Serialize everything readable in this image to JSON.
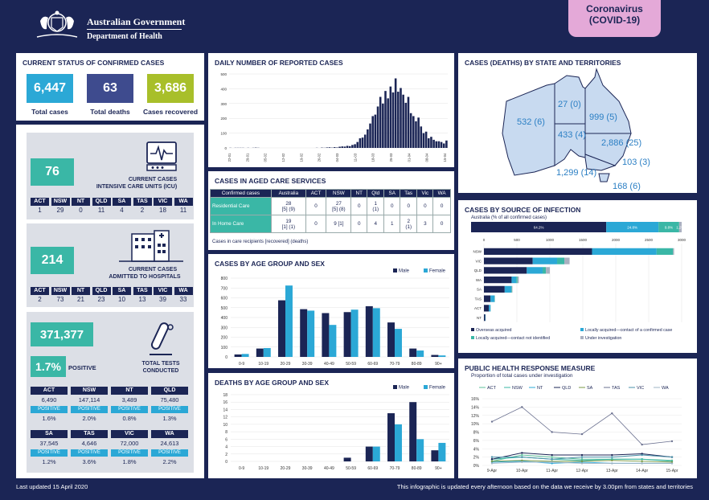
{
  "header": {
    "gov": "Australian Government",
    "dept": "Department of Health",
    "badge_line1": "Coronavirus",
    "badge_line2": "(COVID-19)"
  },
  "status": {
    "title": "CURRENT STATUS OF CONFIRMED CASES",
    "total": "6,447",
    "total_label": "Total cases",
    "deaths": "63",
    "deaths_label": "Total deaths",
    "recovered": "3,686",
    "recovered_label": "Cases recovered"
  },
  "icu": {
    "value": "76",
    "label1": "CURRENT CASES",
    "label2": "INTENSIVE CARE UNITS (ICU)",
    "states": [
      "ACT",
      "NSW",
      "NT",
      "QLD",
      "SA",
      "TAS",
      "VIC",
      "WA"
    ],
    "values": [
      "1",
      "29",
      "0",
      "11",
      "4",
      "2",
      "18",
      "11"
    ]
  },
  "hospital": {
    "value": "214",
    "label1": "CURRENT CASES",
    "label2": "ADMITTED TO HOSPITALS",
    "states": [
      "ACT",
      "NSW",
      "NT",
      "QLD",
      "SA",
      "TAS",
      "VIC",
      "WA"
    ],
    "values": [
      "2",
      "73",
      "21",
      "23",
      "10",
      "13",
      "39",
      "33"
    ]
  },
  "tests": {
    "value": "371,377",
    "positive_pct": "1.7%",
    "positive_word": "POSITIVE",
    "label1": "TOTAL TESTS",
    "label2": "CONDUCTED",
    "pos_label": "POSITIVE",
    "row1_states": [
      "ACT",
      "NSW",
      "NT",
      "QLD"
    ],
    "row1_values": [
      "6,490",
      "147,114",
      "3,489",
      "75,480"
    ],
    "row1_pct": [
      "1.6%",
      "2.0%",
      "0.8%",
      "1.3%"
    ],
    "row2_states": [
      "SA",
      "TAS",
      "VIC",
      "WA"
    ],
    "row2_values": [
      "37,545",
      "4,646",
      "72,000",
      "24,613"
    ],
    "row2_pct": [
      "1.2%",
      "3.6%",
      "1.8%",
      "2.2%"
    ]
  },
  "aged_care": {
    "title": "CASES IN AGED CARE SERVICES",
    "headers": [
      "Confirmed cases",
      "Australia",
      "ACT",
      "NSW",
      "NT",
      "Qld",
      "SA",
      "Tas",
      "Vic",
      "WA"
    ],
    "rows": [
      {
        "label": "Residential Care",
        "cells": [
          "28\n[5] (9)",
          "0",
          "27\n[5] (8)",
          "0",
          "1\n(1)",
          "0",
          "0",
          "0",
          "0"
        ]
      },
      {
        "label": "In Home Care",
        "cells": [
          "19\n[1] (1)",
          "0",
          "9 [1]",
          "0",
          "4",
          "1",
          "2\n(1)",
          "3",
          "0"
        ]
      }
    ],
    "note": "Cases in care recipients [recovered] (deaths)"
  },
  "map": {
    "title": "CASES (DEATHS) BY STATE AND TERRITORIES",
    "wa": "532 (6)",
    "nt": "27 (0)",
    "sa": "433 (4)",
    "qld": "999 (5)",
    "nsw": "2,886 (25)",
    "act": "103 (3)",
    "vic": "1,299 (14)",
    "tas": "168 (6)"
  },
  "footer": {
    "left": "Last updated 15 April 2020",
    "right": "This infographic is updated every afternoon based on the data we receive by 3.00pm from states and territories"
  },
  "colors": {
    "navy": "#1b2555",
    "blue": "#2ba8d6",
    "teal": "#3ab7a6",
    "lightblue": "#5bc0e8",
    "olive": "#a8bf2a",
    "slate": "#3e4b8e",
    "teal2": "#3db8c0",
    "pink": "#e4a9d8"
  },
  "chart_data": [
    {
      "type": "bar",
      "title": "DAILY NUMBER OF REPORTED CASES",
      "ylim": [
        0,
        500
      ],
      "yticks": [
        "0",
        "100",
        "200",
        "300",
        "400",
        "500"
      ],
      "xtick_labels": [
        "22-01",
        "29-01",
        "05-02",
        "12-02",
        "19-02",
        "26-02",
        "04-03",
        "11-03",
        "18-03",
        "25-03",
        "01-04",
        "08-04",
        "15-04"
      ],
      "values": [
        1,
        0,
        1,
        1,
        1,
        1,
        0,
        1,
        0,
        1,
        2,
        1,
        0,
        0,
        0,
        0,
        0,
        0,
        0,
        0,
        0,
        0,
        0,
        0,
        0,
        0,
        0,
        0,
        0,
        0,
        0,
        0,
        0,
        0,
        1,
        0,
        2,
        1,
        3,
        4,
        2,
        5,
        3,
        8,
        10,
        9,
        14,
        12,
        20,
        25,
        40,
        65,
        70,
        90,
        125,
        165,
        215,
        225,
        280,
        345,
        300,
        385,
        335,
        415,
        375,
        470,
        380,
        405,
        360,
        305,
        345,
        235,
        215,
        180,
        205,
        145,
        100,
        110,
        65,
        75,
        55,
        45,
        45,
        40,
        30,
        50
      ]
    },
    {
      "type": "bar",
      "title": "CASES BY AGE GROUP AND SEX",
      "categories": [
        "0-9",
        "10-19",
        "20-29",
        "30-39",
        "40-49",
        "50-59",
        "60-69",
        "70-79",
        "80-89",
        "90+"
      ],
      "ylim": [
        0,
        800
      ],
      "yticks": [
        "0",
        "100",
        "200",
        "300",
        "400",
        "500",
        "600",
        "700",
        "800"
      ],
      "series": [
        {
          "name": "Male",
          "values": [
            25,
            85,
            575,
            485,
            445,
            455,
            515,
            350,
            85,
            20
          ]
        },
        {
          "name": "Female",
          "values": [
            30,
            90,
            725,
            470,
            325,
            480,
            495,
            285,
            65,
            15
          ]
        }
      ]
    },
    {
      "type": "bar",
      "title": "DEATHS BY AGE GROUP AND SEX",
      "categories": [
        "0-9",
        "10-19",
        "20-29",
        "30-39",
        "40-49",
        "50-59",
        "60-69",
        "70-79",
        "80-89",
        "90+"
      ],
      "ylim": [
        0,
        18
      ],
      "yticks": [
        "0",
        "2",
        "4",
        "6",
        "8",
        "10",
        "12",
        "14",
        "16",
        "18"
      ],
      "series": [
        {
          "name": "Male",
          "values": [
            0,
            0,
            0,
            0,
            0,
            1,
            4,
            13,
            16,
            3
          ]
        },
        {
          "name": "Female",
          "values": [
            0,
            0,
            0,
            0,
            0,
            0,
            4,
            10,
            6,
            5
          ]
        }
      ]
    },
    {
      "type": "bar",
      "title": "CASES BY SOURCE OF INFECTION",
      "subtitle": "Australia (% of all confirmed cases)",
      "stack_labels": [
        "64.2%",
        "24.8%",
        "9.8%",
        "1.2%"
      ],
      "stack_values": [
        64.2,
        24.8,
        9.8,
        1.2
      ],
      "xlim": [
        0,
        3000
      ],
      "xticks": [
        "0",
        "500",
        "1000",
        "1500",
        "2000",
        "2500",
        "3000"
      ],
      "categories": [
        "NSW",
        "VIC",
        "QLD",
        "WA",
        "SA",
        "TAS",
        "ACT",
        "NT"
      ],
      "series": [
        {
          "name": "Overseas acquired",
          "values": [
            1640,
            740,
            650,
            420,
            315,
            100,
            75,
            20
          ]
        },
        {
          "name": "Locally acquired—contact of a confirmed case",
          "values": [
            980,
            370,
            240,
            70,
            100,
            60,
            25,
            5
          ]
        },
        {
          "name": "Locally acquired—contact not identified",
          "values": [
            250,
            110,
            50,
            20,
            10,
            5,
            2,
            1
          ]
        },
        {
          "name": "Under investigation",
          "values": [
            15,
            80,
            60,
            20,
            8,
            2,
            1,
            1
          ]
        }
      ]
    },
    {
      "type": "line",
      "title": "PUBLIC HEALTH RESPONSE MEASURE",
      "subtitle": "Proportion of total cases under investigation",
      "x": [
        "9-Apr",
        "10-Apr",
        "11-Apr",
        "12-Apr",
        "13-Apr",
        "14-Apr",
        "15-Apr"
      ],
      "ylim": [
        0,
        16
      ],
      "yticks": [
        "0%",
        "2%",
        "4%",
        "6%",
        "8%",
        "10%",
        "12%",
        "14%",
        "16%"
      ],
      "series": [
        {
          "name": "ACT",
          "values": [
            1.0,
            2.5,
            2.0,
            1.5,
            1.5,
            1.5,
            1.2
          ]
        },
        {
          "name": "NSW",
          "values": [
            1.5,
            2.0,
            1.5,
            1.2,
            1.5,
            1.5,
            1.0
          ]
        },
        {
          "name": "NT",
          "values": [
            0.8,
            1.0,
            0.5,
            0.8,
            0.5,
            0.5,
            0.5
          ]
        },
        {
          "name": "QLD",
          "values": [
            1.5,
            3.0,
            2.5,
            2.5,
            2.5,
            2.8,
            2.0
          ]
        },
        {
          "name": "SA",
          "values": [
            1.0,
            1.2,
            1.0,
            1.0,
            1.2,
            1.0,
            0.8
          ]
        },
        {
          "name": "TAS",
          "values": [
            10.5,
            14.0,
            8.0,
            7.5,
            12.5,
            5.0,
            5.8
          ]
        },
        {
          "name": "VIC",
          "values": [
            2.0,
            2.0,
            1.5,
            2.0,
            2.0,
            2.5,
            2.0
          ]
        },
        {
          "name": "WA",
          "values": [
            0.5,
            0.8,
            0.8,
            0.5,
            0.5,
            0.5,
            0.5
          ]
        }
      ],
      "series_colors": [
        "#5dbf9a",
        "#3ab7a6",
        "#2ba8d6",
        "#1b2555",
        "#7a9a44",
        "#6b7190",
        "#4a90a8",
        "#9fb4c4"
      ]
    }
  ]
}
